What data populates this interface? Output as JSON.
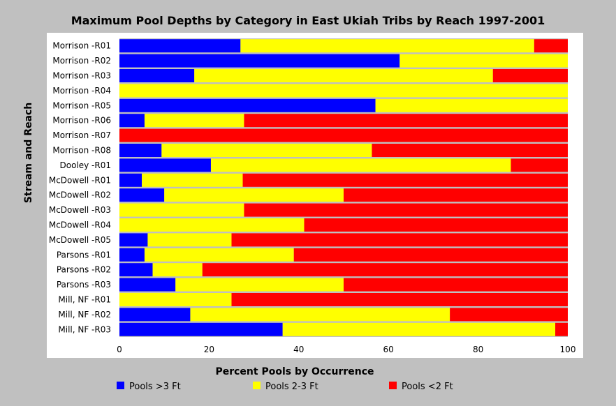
{
  "chart_data": {
    "type": "bar",
    "orientation": "horizontal",
    "stacked": true,
    "title": "Maximum Pool Depths by Category in East Ukiah Tribs by Reach 1997-2001",
    "xlabel": "Percent Pools by Occurrence",
    "ylabel": "Stream and Reach",
    "xlim": [
      0,
      100
    ],
    "xticks": [
      "0",
      "20",
      "40",
      "60",
      "80",
      "100"
    ],
    "grid": false,
    "legend_position": "bottom",
    "categories": [
      "Morrison -R01",
      "Morrison -R02",
      "Morrison -R03",
      "Morrison -R04",
      "Morrison -R05",
      "Morrison -R06",
      "Morrison -R07",
      "Morrison -R08",
      "Dooley -R01",
      "McDowell -R01",
      "McDowell -R02",
      "McDowell -R03",
      "McDowell -R04",
      "McDowell -R05",
      "Parsons -R01",
      "Parsons -R02",
      "Parsons -R03",
      "Mill, NF -R01",
      "Mill, NF -R02",
      "Mill, NF -R03"
    ],
    "series": [
      {
        "name": "Pools >3 Ft",
        "color": "#0000ff",
        "values": [
          27,
          62.5,
          16.7,
          0,
          57.1,
          5.6,
          0,
          9.4,
          20.4,
          5,
          10,
          0,
          0,
          6.3,
          5.6,
          7.4,
          12.5,
          0,
          15.8,
          36.4
        ]
      },
      {
        "name": "Pools 2-3 Ft",
        "color": "#ffff00",
        "values": [
          65.5,
          37.5,
          66.6,
          100,
          42.9,
          22.2,
          0,
          46.9,
          66.9,
          22.5,
          40,
          27.8,
          41.2,
          18.7,
          33.3,
          11.1,
          37.5,
          25,
          57.9,
          60.8
        ]
      },
      {
        "name": "Pools <2 Ft",
        "color": "#ff0000",
        "values": [
          7.5,
          0,
          16.7,
          0,
          0,
          72.2,
          100,
          43.7,
          12.7,
          72.5,
          50,
          72.2,
          58.8,
          75,
          61.1,
          81.5,
          50,
          75,
          26.3,
          2.8
        ]
      }
    ]
  }
}
